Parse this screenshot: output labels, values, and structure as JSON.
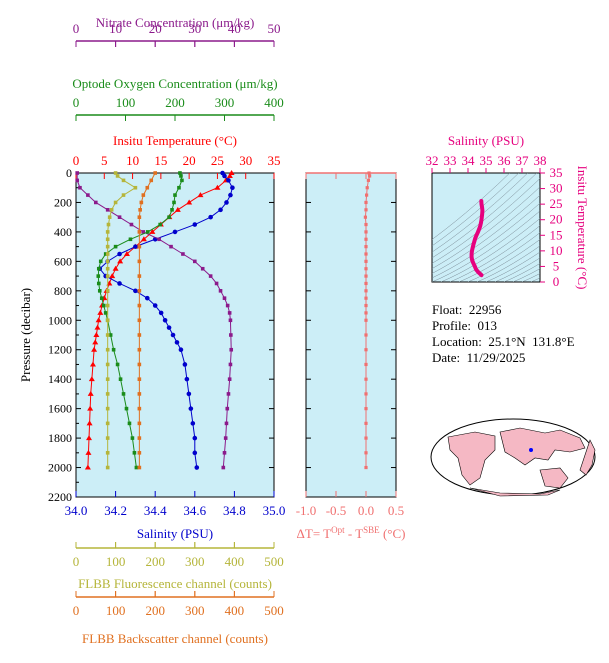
{
  "info": {
    "float_label": "Float:  22956",
    "profile_label": "Profile:  013",
    "location_label": "Location:  25.1°N  131.8°E",
    "date_label": "Date:  11/29/2025"
  },
  "colors": {
    "panel_bg": "#cceef7",
    "temperature": "#ff0000",
    "salinity": "#0000cc",
    "nitrate": "#8b1a8b",
    "oxygen": "#1a8c1a",
    "fluorescence": "#b5b53a",
    "backscatter": "#e07020",
    "delta_t": "#f07070",
    "ts_curve": "#e6007e"
  },
  "chart_data": [
    {
      "type": "line",
      "panel": "main_profiles",
      "y_axis": {
        "label": "Pressure (decibar)",
        "range": [
          0,
          2200
        ],
        "inverted": true,
        "ticks": [
          0,
          200,
          400,
          600,
          800,
          1000,
          1200,
          1400,
          1600,
          1800,
          2000,
          2200
        ]
      },
      "axes": {
        "nitrate": {
          "label": "Nitrate Concentration (μm/kg)",
          "range": [
            0,
            50
          ],
          "ticks": [
            0,
            10,
            20,
            30,
            40,
            50
          ]
        },
        "oxygen": {
          "label": "Optode Oxygen Concentration (μm/kg)",
          "range": [
            0,
            400
          ],
          "ticks": [
            0,
            100,
            200,
            300,
            400
          ]
        },
        "temperature": {
          "label": "Insitu Temperature (°C)",
          "range": [
            0,
            35
          ],
          "ticks": [
            0,
            5,
            10,
            15,
            20,
            25,
            30,
            35
          ]
        },
        "salinity": {
          "label": "Salinity (PSU)",
          "range": [
            34.0,
            35.0
          ],
          "ticks": [
            "34.0",
            "34.2",
            "34.4",
            "34.6",
            "34.8",
            "35.0"
          ]
        },
        "fluorescence": {
          "label": "FLBB Fluorescence channel (counts)",
          "range": [
            0,
            500
          ],
          "ticks": [
            0,
            100,
            200,
            300,
            400,
            500
          ]
        },
        "backscatter": {
          "label": "FLBB Backscatter channel (counts)",
          "range": [
            0,
            500
          ],
          "ticks": [
            0,
            100,
            200,
            300,
            400,
            500
          ]
        }
      },
      "series": [
        {
          "key": "temperature",
          "marker": "triangle",
          "points": [
            [
              27.5,
              0
            ],
            [
              27.2,
              20
            ],
            [
              26.5,
              50
            ],
            [
              25,
              100
            ],
            [
              22,
              150
            ],
            [
              20,
              200
            ],
            [
              18,
              250
            ],
            [
              16.5,
              300
            ],
            [
              15,
              350
            ],
            [
              13.5,
              400
            ],
            [
              12,
              450
            ],
            [
              10.5,
              500
            ],
            [
              9,
              550
            ],
            [
              7.8,
              600
            ],
            [
              7,
              650
            ],
            [
              6.4,
              700
            ],
            [
              5.9,
              750
            ],
            [
              5.4,
              800
            ],
            [
              5,
              850
            ],
            [
              4.6,
              900
            ],
            [
              4.3,
              950
            ],
            [
              4,
              1000
            ],
            [
              3.8,
              1050
            ],
            [
              3.6,
              1100
            ],
            [
              3.4,
              1150
            ],
            [
              3.2,
              1200
            ],
            [
              3,
              1300
            ],
            [
              2.8,
              1400
            ],
            [
              2.6,
              1500
            ],
            [
              2.5,
              1600
            ],
            [
              2.4,
              1700
            ],
            [
              2.3,
              1800
            ],
            [
              2.2,
              1900
            ],
            [
              2.1,
              2000
            ]
          ]
        },
        {
          "key": "salinity",
          "marker": "circle",
          "points": [
            [
              34.74,
              0
            ],
            [
              34.75,
              20
            ],
            [
              34.77,
              50
            ],
            [
              34.79,
              100
            ],
            [
              34.78,
              150
            ],
            [
              34.76,
              200
            ],
            [
              34.73,
              250
            ],
            [
              34.68,
              300
            ],
            [
              34.6,
              350
            ],
            [
              34.5,
              400
            ],
            [
              34.4,
              450
            ],
            [
              34.3,
              500
            ],
            [
              34.22,
              550
            ],
            [
              34.16,
              600
            ],
            [
              34.12,
              650
            ],
            [
              34.15,
              700
            ],
            [
              34.22,
              750
            ],
            [
              34.3,
              800
            ],
            [
              34.36,
              850
            ],
            [
              34.4,
              900
            ],
            [
              34.43,
              950
            ],
            [
              34.45,
              1000
            ],
            [
              34.47,
              1050
            ],
            [
              34.49,
              1100
            ],
            [
              34.51,
              1150
            ],
            [
              34.53,
              1200
            ],
            [
              34.55,
              1300
            ],
            [
              34.56,
              1400
            ],
            [
              34.57,
              1500
            ],
            [
              34.58,
              1600
            ],
            [
              34.59,
              1700
            ],
            [
              34.6,
              1800
            ],
            [
              34.6,
              1900
            ],
            [
              34.61,
              2000
            ]
          ]
        },
        {
          "key": "nitrate",
          "marker": "square",
          "points": [
            [
              0.3,
              0
            ],
            [
              0.3,
              50
            ],
            [
              1,
              100
            ],
            [
              3,
              150
            ],
            [
              5,
              200
            ],
            [
              8,
              250
            ],
            [
              11,
              300
            ],
            [
              14,
              350
            ],
            [
              17,
              400
            ],
            [
              21,
              450
            ],
            [
              24,
              500
            ],
            [
              27,
              550
            ],
            [
              30,
              600
            ],
            [
              32,
              650
            ],
            [
              34,
              700
            ],
            [
              35.5,
              750
            ],
            [
              36.5,
              800
            ],
            [
              37.5,
              850
            ],
            [
              38.3,
              900
            ],
            [
              38.8,
              950
            ],
            [
              39,
              1000
            ],
            [
              39.1,
              1100
            ],
            [
              39.2,
              1200
            ],
            [
              39,
              1300
            ],
            [
              38.8,
              1400
            ],
            [
              38.5,
              1500
            ],
            [
              38.2,
              1600
            ],
            [
              38,
              1700
            ],
            [
              37.8,
              1800
            ],
            [
              37.5,
              1900
            ],
            [
              37.2,
              2000
            ]
          ]
        },
        {
          "key": "oxygen",
          "marker": "square",
          "points": [
            [
              210,
              0
            ],
            [
              212,
              20
            ],
            [
              214,
              50
            ],
            [
              208,
              100
            ],
            [
              200,
              150
            ],
            [
              198,
              200
            ],
            [
              194,
              250
            ],
            [
              188,
              300
            ],
            [
              170,
              350
            ],
            [
              145,
              400
            ],
            [
              110,
              450
            ],
            [
              80,
              500
            ],
            [
              60,
              550
            ],
            [
              50,
              600
            ],
            [
              46,
              650
            ],
            [
              45,
              700
            ],
            [
              46,
              750
            ],
            [
              48,
              800
            ],
            [
              52,
              850
            ],
            [
              56,
              900
            ],
            [
              60,
              950
            ],
            [
              64,
              1000
            ],
            [
              70,
              1100
            ],
            [
              76,
              1200
            ],
            [
              84,
              1300
            ],
            [
              90,
              1400
            ],
            [
              96,
              1500
            ],
            [
              102,
              1600
            ],
            [
              108,
              1700
            ],
            [
              114,
              1800
            ],
            [
              118,
              1900
            ],
            [
              122,
              2000
            ]
          ]
        },
        {
          "key": "fluorescence",
          "marker": "square",
          "points": [
            [
              100,
              0
            ],
            [
              105,
              20
            ],
            [
              120,
              50
            ],
            [
              150,
              100
            ],
            [
              120,
              150
            ],
            [
              100,
              200
            ],
            [
              90,
              250
            ],
            [
              85,
              300
            ],
            [
              82,
              350
            ],
            [
              80,
              400
            ],
            [
              80,
              450
            ],
            [
              80,
              500
            ],
            [
              80,
              550
            ],
            [
              80,
              600
            ],
            [
              80,
              650
            ],
            [
              80,
              700
            ],
            [
              80,
              800
            ],
            [
              80,
              900
            ],
            [
              80,
              1000
            ],
            [
              80,
              1100
            ],
            [
              80,
              1200
            ],
            [
              80,
              1300
            ],
            [
              80,
              1400
            ],
            [
              80,
              1500
            ],
            [
              80,
              1600
            ],
            [
              80,
              1700
            ],
            [
              80,
              1800
            ],
            [
              80,
              1900
            ],
            [
              80,
              2000
            ]
          ]
        },
        {
          "key": "backscatter",
          "marker": "square",
          "points": [
            [
              200,
              0
            ],
            [
              190,
              50
            ],
            [
              180,
              100
            ],
            [
              170,
              150
            ],
            [
              165,
              200
            ],
            [
              162,
              250
            ],
            [
              160,
              300
            ],
            [
              160,
              400
            ],
            [
              160,
              500
            ],
            [
              160,
              600
            ],
            [
              160,
              700
            ],
            [
              160,
              800
            ],
            [
              160,
              900
            ],
            [
              160,
              1000
            ],
            [
              160,
              1100
            ],
            [
              160,
              1200
            ],
            [
              160,
              1300
            ],
            [
              160,
              1400
            ],
            [
              160,
              1500
            ],
            [
              160,
              1600
            ],
            [
              160,
              1700
            ],
            [
              160,
              1800
            ],
            [
              160,
              1900
            ],
            [
              160,
              2000
            ]
          ]
        }
      ]
    },
    {
      "type": "scatter",
      "panel": "delta_t",
      "x_axis": {
        "label": "ΔT= T^Opt - T^SBE (°C)",
        "range": [
          -1.0,
          0.5
        ],
        "ticks": [
          "-1.0",
          "-0.5",
          "0.0",
          "0.5"
        ]
      },
      "y_range": [
        0,
        2200
      ],
      "points": [
        [
          0.05,
          0
        ],
        [
          0.06,
          20
        ],
        [
          0.04,
          50
        ],
        [
          0.02,
          100
        ],
        [
          0.01,
          150
        ],
        [
          0.0,
          200
        ],
        [
          0.0,
          250
        ],
        [
          -0.01,
          300
        ],
        [
          0.0,
          350
        ],
        [
          0.0,
          400
        ],
        [
          0.0,
          450
        ],
        [
          0.0,
          500
        ],
        [
          0.0,
          550
        ],
        [
          0.0,
          600
        ],
        [
          0.0,
          650
        ],
        [
          0.0,
          700
        ],
        [
          0.0,
          750
        ],
        [
          0.0,
          800
        ],
        [
          0.0,
          850
        ],
        [
          0.0,
          900
        ],
        [
          0.0,
          950
        ],
        [
          0.0,
          1000
        ],
        [
          0.0,
          1100
        ],
        [
          0.0,
          1200
        ],
        [
          0.0,
          1300
        ],
        [
          0.0,
          1400
        ],
        [
          0.0,
          1500
        ],
        [
          0.0,
          1600
        ],
        [
          0.0,
          1700
        ],
        [
          0.0,
          1800
        ],
        [
          0.0,
          1900
        ],
        [
          0.0,
          2000
        ]
      ]
    },
    {
      "type": "line",
      "panel": "ts_diagram",
      "x_axis": {
        "label": "Salinity (PSU)",
        "range": [
          32,
          38
        ],
        "ticks": [
          32,
          33,
          34,
          35,
          36,
          37,
          38
        ]
      },
      "y_axis": {
        "label": "Insitu Temperature (°C)",
        "range": [
          0,
          35
        ],
        "ticks": [
          0,
          5,
          10,
          15,
          20,
          25,
          30,
          35
        ]
      },
      "points": [
        [
          34.75,
          2.2
        ],
        [
          34.6,
          3
        ],
        [
          34.45,
          4
        ],
        [
          34.38,
          5
        ],
        [
          34.3,
          6
        ],
        [
          34.23,
          7
        ],
        [
          34.2,
          8
        ],
        [
          34.2,
          9
        ],
        [
          34.22,
          10
        ],
        [
          34.26,
          11
        ],
        [
          34.3,
          12
        ],
        [
          34.35,
          13
        ],
        [
          34.4,
          14
        ],
        [
          34.47,
          15
        ],
        [
          34.55,
          16
        ],
        [
          34.62,
          17
        ],
        [
          34.68,
          18
        ],
        [
          34.72,
          19
        ],
        [
          34.75,
          20
        ],
        [
          34.77,
          21
        ],
        [
          34.79,
          22
        ],
        [
          34.8,
          23
        ],
        [
          34.78,
          24
        ],
        [
          34.75,
          25
        ],
        [
          34.74,
          26
        ]
      ]
    }
  ]
}
